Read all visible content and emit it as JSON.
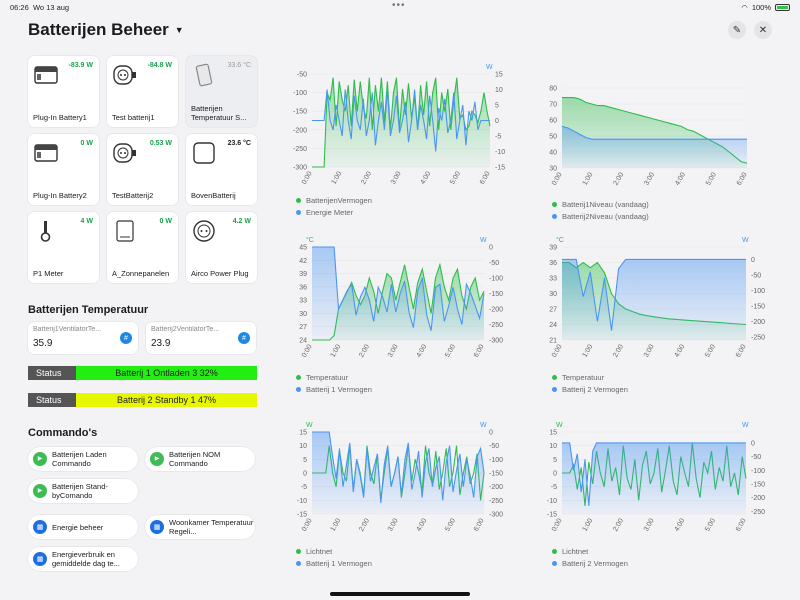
{
  "status_bar": {
    "time": "06:26",
    "date": "Wo 13 aug",
    "battery": "100%"
  },
  "header": {
    "title": "Batterijen Beheer"
  },
  "tiles": [
    {
      "name": "Plug-In Battery1",
      "value": "-83.9 W",
      "tone": "green",
      "icon": "battery-plug-icon"
    },
    {
      "name": "Test batterij1",
      "value": "-84.8 W",
      "tone": "green",
      "icon": "smart-plug-icon"
    },
    {
      "name": "Batterijen Temperatuur S...",
      "value": "33.6 °C",
      "tone": "grey",
      "icon": "temperature-sensor-icon"
    },
    {
      "name": "Plug-In Battery2",
      "value": "0 W",
      "tone": "green",
      "icon": "battery-plug-icon"
    },
    {
      "name": "TestBatterij2",
      "value": "0.53 W",
      "tone": "green",
      "icon": "smart-plug-icon"
    },
    {
      "name": "BovenBatterij",
      "value": "23.6 °C",
      "tone": "dark",
      "icon": "sensor-box-icon"
    },
    {
      "name": "P1 Meter",
      "value": "4 W",
      "tone": "green",
      "icon": "p1-meter-icon"
    },
    {
      "name": "A_Zonnepanelen",
      "value": "0 W",
      "tone": "green",
      "icon": "inverter-icon"
    },
    {
      "name": "Airco Power Plug",
      "value": "4.2 W",
      "tone": "green",
      "icon": "power-plug-icon"
    }
  ],
  "temp_section": {
    "title": "Batterijen Temperatuur",
    "sensors": [
      {
        "label": "Batterij1VentilatorTe...",
        "value": "35.9"
      },
      {
        "label": "Batterij2VentilatorTe...",
        "value": "23.9"
      }
    ]
  },
  "status_rows": [
    {
      "key": "Status",
      "value": "Batterij 1 Ontladen 3 32%",
      "color": "#22ee11"
    },
    {
      "key": "Status",
      "value": "Batterij 2 Standby 1 47%",
      "color": "#e6f700"
    }
  ],
  "commands": {
    "title": "Commando's",
    "items": [
      {
        "label": "Batterijen Laden Commando",
        "kind": "play"
      },
      {
        "label": "Batterijen NOM Commando",
        "kind": "play"
      },
      {
        "label": "Batterijen Stand-byComando",
        "kind": "play"
      },
      {
        "label": "Energie beheer",
        "kind": "dashboard"
      },
      {
        "label": "Woonkamer Temperatuur Regeli...",
        "kind": "dashboard"
      },
      {
        "label": "Energieverbruik en gemiddelde dag te...",
        "kind": "dashboard"
      }
    ]
  },
  "chart_data": [
    {
      "type": "area",
      "x_ticks": [
        "0:00",
        "1:00",
        "2:00",
        "3:00",
        "4:00",
        "5:00",
        "6:00"
      ],
      "left_unit": "",
      "right_unit": "W",
      "left_ylim": [
        -300,
        -50
      ],
      "left_ticks": [
        "-50",
        "-100",
        "-150",
        "-200",
        "-250",
        "-300"
      ],
      "right_ylim": [
        -15,
        15
      ],
      "right_ticks": [
        "15",
        "10",
        "5",
        "0",
        "-5",
        "-10",
        "-15"
      ],
      "series": [
        {
          "name": "BatterijenVermogen",
          "axis": "left",
          "color": "#2ebd4b",
          "fill": true,
          "values": [
            -300,
            -300,
            -300,
            -300,
            -300,
            -100,
            -120,
            -60,
            -190,
            -70,
            -120,
            -150,
            -80,
            -190,
            -65,
            -150,
            -70,
            -140,
            -170,
            -60,
            -200,
            -80,
            -150,
            -60,
            -180,
            -70,
            -200,
            -100,
            -60,
            -200,
            -90,
            -160,
            -75,
            -170,
            -110,
            -200,
            -80,
            -160,
            -70,
            -190,
            -100,
            -60,
            -200,
            -100,
            -150,
            -90,
            -200,
            -120,
            -60,
            -170,
            -160,
            -200,
            -190,
            -150,
            -160,
            -180,
            -150,
            -100,
            -150,
            -190
          ]
        },
        {
          "name": "Energie Meter",
          "axis": "right",
          "color": "#4a95f2",
          "fill": false,
          "values": [
            0,
            0,
            0,
            0,
            0,
            10,
            0,
            -3,
            5,
            0,
            -5,
            10,
            0,
            -6,
            8,
            0,
            -3,
            7,
            -5,
            0,
            9,
            -8,
            0,
            6,
            -3,
            10,
            -5,
            0,
            8,
            -4,
            0,
            6,
            -7,
            0,
            10,
            -3,
            5,
            0,
            -6,
            8,
            0,
            -10,
            4,
            0,
            7,
            -4,
            0,
            9,
            -6,
            0,
            5,
            -8,
            3,
            0,
            6,
            -3,
            0,
            0,
            0,
            0
          ]
        }
      ]
    },
    {
      "type": "area",
      "x_ticks": [
        "0:00",
        "1:00",
        "2:00",
        "3:00",
        "4:00",
        "5:00",
        "6:00"
      ],
      "left_unit": "",
      "right_unit": "",
      "left_ylim": [
        30,
        80
      ],
      "left_ticks": [
        "80",
        "70",
        "60",
        "50",
        "40",
        "30"
      ],
      "series": [
        {
          "name": "Batterij1Niveau (vandaag)",
          "axis": "left",
          "color": "#2ebd4b",
          "fill": true,
          "values": [
            74,
            74,
            74,
            73,
            71,
            70,
            69,
            69,
            68,
            67,
            66,
            65,
            64,
            63,
            62,
            61,
            60,
            59,
            58,
            57,
            56,
            54,
            53,
            51,
            49,
            47,
            45,
            43,
            40,
            37,
            34,
            33
          ]
        },
        {
          "name": "Batterij2Niveau (vandaag)",
          "axis": "left",
          "color": "#4a95f2",
          "fill": true,
          "values": [
            56,
            55,
            53,
            51,
            49,
            48,
            48,
            48,
            48,
            48,
            48,
            48,
            48,
            48,
            48,
            48,
            48,
            48,
            48,
            48,
            48,
            48,
            48,
            48,
            48,
            48,
            48,
            48,
            48,
            48,
            48,
            48
          ]
        }
      ]
    },
    {
      "type": "area",
      "x_ticks": [
        "0:00",
        "1:00",
        "2:00",
        "3:00",
        "4:00",
        "5:00",
        "6:00"
      ],
      "left_unit": "°C",
      "right_unit": "W",
      "left_ylim": [
        24,
        45
      ],
      "left_ticks": [
        "45",
        "42",
        "39",
        "36",
        "33",
        "30",
        "27",
        "24"
      ],
      "right_ylim": [
        -300,
        0
      ],
      "right_ticks": [
        "0",
        "-50",
        "-100",
        "-150",
        "-200",
        "-250",
        "-300"
      ],
      "series": [
        {
          "name": "Temperatuur",
          "axis": "left",
          "color": "#2ebd4b",
          "fill": true,
          "values": [
            24,
            24,
            24,
            24,
            24,
            25,
            31,
            33,
            35,
            37,
            34,
            32,
            34,
            38,
            35,
            30,
            35,
            39,
            38,
            33,
            37,
            41,
            36,
            31,
            37,
            40,
            35,
            30,
            38,
            41,
            36,
            33,
            38,
            40,
            34,
            31,
            36,
            38,
            33,
            35
          ]
        },
        {
          "name": "Batterij 1 Vermogen",
          "axis": "right",
          "color": "#4a95f2",
          "fill": true,
          "values": [
            0,
            0,
            0,
            0,
            0,
            0,
            -200,
            -170,
            -140,
            -120,
            -220,
            -160,
            -130,
            -170,
            -240,
            -130,
            -160,
            -210,
            -120,
            -210,
            -150,
            -110,
            -210,
            -260,
            -140,
            -100,
            -220,
            -270,
            -130,
            -120,
            -240,
            -190,
            -130,
            -200,
            -250,
            -120,
            -150,
            -190,
            -230,
            -150
          ]
        }
      ]
    },
    {
      "type": "area",
      "x_ticks": [
        "0:00",
        "1:00",
        "2:00",
        "3:00",
        "4:00",
        "5:00",
        "6:00"
      ],
      "left_unit": "°C",
      "right_unit": "W",
      "left_ylim": [
        21,
        39
      ],
      "left_ticks": [
        "39",
        "36",
        "33",
        "30",
        "27",
        "24",
        "21"
      ],
      "right_ylim": [
        -260,
        40
      ],
      "right_ticks": [
        "0",
        "-50",
        "-100",
        "-150",
        "-200",
        "-250"
      ],
      "series": [
        {
          "name": "Temperatuur",
          "axis": "left",
          "color": "#2ebd4b",
          "fill": true,
          "values": [
            36,
            36,
            35,
            36,
            35,
            36,
            34,
            30,
            28,
            27,
            26.5,
            26,
            25.7,
            25.5,
            25.3,
            25.1,
            25,
            24.9,
            24.8,
            24.7,
            24.6,
            24.5,
            24.4,
            24.3,
            24.2,
            24.1,
            24
          ]
        },
        {
          "name": "Batterij 2 Vermogen",
          "axis": "right",
          "color": "#4a95f2",
          "fill": true,
          "values": [
            0,
            0,
            0,
            -120,
            -40,
            -200,
            -60,
            -230,
            -30,
            0,
            0,
            0,
            0,
            0,
            0,
            0,
            0,
            0,
            0,
            0,
            0,
            0,
            0,
            0,
            0,
            0,
            0
          ]
        }
      ]
    },
    {
      "type": "area",
      "x_ticks": [
        "0:00",
        "1:00",
        "2:00",
        "3:00",
        "4:00",
        "5:00",
        "6:00"
      ],
      "left_unit": "W",
      "right_unit": "W",
      "left_ylim": [
        -15,
        15
      ],
      "left_ticks": [
        "15",
        "10",
        "5",
        "0",
        "-5",
        "-10",
        "-15"
      ],
      "right_ylim": [
        -300,
        0
      ],
      "right_ticks": [
        "0",
        "-50",
        "-100",
        "-150",
        "-200",
        "-250",
        "-300"
      ],
      "series": [
        {
          "name": "Lichtnet",
          "axis": "left",
          "color": "#2ebd4b",
          "fill": false,
          "values": [
            0,
            0,
            0,
            0,
            0,
            10,
            0,
            -5,
            8,
            0,
            -3,
            10,
            -6,
            5,
            0,
            -8,
            10,
            0,
            -4,
            7,
            -10,
            0,
            9,
            -5,
            0,
            6,
            -9,
            0,
            10,
            -3,
            5,
            0,
            -7,
            10,
            0,
            -4,
            8,
            -6,
            0,
            9,
            -5,
            0,
            10,
            -8,
            0,
            6,
            -4,
            0,
            7,
            -10,
            0
          ]
        },
        {
          "name": "Batterij 1 Vermogen",
          "axis": "right",
          "color": "#4a95f2",
          "fill": true,
          "values": [
            0,
            0,
            0,
            0,
            0,
            0,
            -90,
            -170,
            -60,
            -200,
            -120,
            -40,
            -220,
            -100,
            -160,
            -240,
            -60,
            -180,
            -130,
            -80,
            -260,
            -120,
            -50,
            -200,
            -150,
            -90,
            -230,
            -100,
            -40,
            -210,
            -150,
            -70,
            -240,
            -110,
            -60,
            -200,
            -130,
            -90,
            -250,
            -110,
            -50,
            -220,
            -140,
            -80,
            -200,
            -100,
            -160,
            -240,
            -90,
            -60,
            -150
          ]
        }
      ]
    },
    {
      "type": "area",
      "x_ticks": [
        "0:00",
        "1:00",
        "2:00",
        "3:00",
        "4:00",
        "5:00",
        "6:00"
      ],
      "left_unit": "W",
      "right_unit": "W",
      "left_ylim": [
        -15,
        15
      ],
      "left_ticks": [
        "15",
        "10",
        "5",
        "0",
        "-5",
        "-10",
        "-15"
      ],
      "right_ylim": [
        -260,
        40
      ],
      "right_ticks": [
        "0",
        "-50",
        "-100",
        "-150",
        "-200",
        "-250"
      ],
      "series": [
        {
          "name": "Lichtnet",
          "axis": "left",
          "color": "#2ebd4b",
          "fill": false,
          "values": [
            0,
            0,
            0,
            3,
            -6,
            2,
            -12,
            4,
            -4,
            8,
            0,
            -5,
            9,
            -3,
            2,
            -8,
            10,
            -2,
            -6,
            5,
            -10,
            3,
            8,
            -4,
            0,
            9,
            -7,
            1,
            10,
            -3,
            -8,
            6,
            0,
            -5,
            11,
            -2,
            -9,
            4,
            0,
            8,
            -6,
            2,
            -3,
            10,
            -5,
            0,
            -8,
            6,
            -2
          ]
        },
        {
          "name": "Batterij 2 Vermogen",
          "axis": "right",
          "color": "#4a95f2",
          "fill": true,
          "values": [
            0,
            0,
            0,
            -100,
            -40,
            -180,
            -60,
            -230,
            -30,
            0,
            0,
            0,
            0,
            0,
            0,
            0,
            0,
            0,
            0,
            0,
            0,
            0,
            0,
            0,
            0,
            0,
            0,
            0,
            0,
            0,
            0,
            0,
            0,
            0,
            0,
            0,
            0,
            0,
            0,
            0,
            0,
            0,
            0,
            0,
            0,
            0,
            0,
            0,
            0
          ]
        }
      ]
    }
  ]
}
